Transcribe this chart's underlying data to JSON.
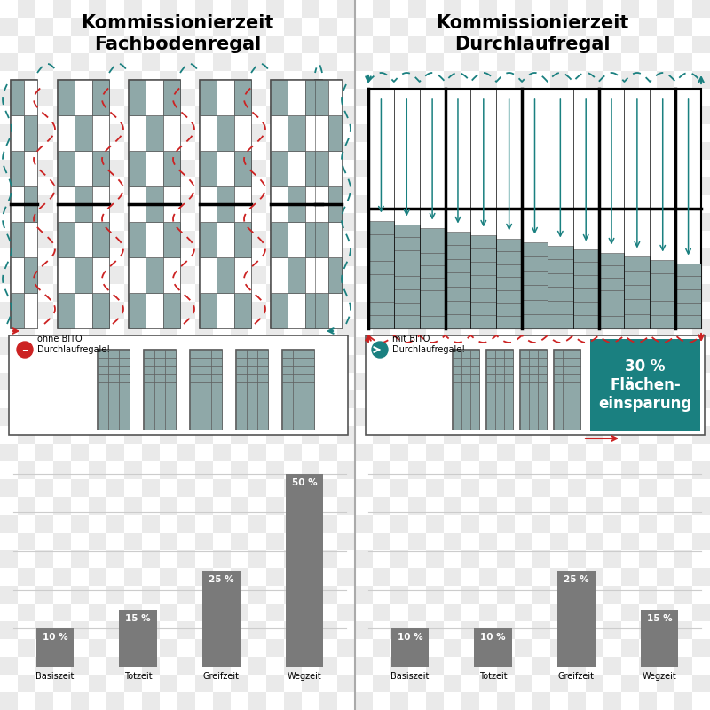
{
  "title_left": "Kommissionierzeit\nFachbodenregal",
  "title_right": "Kommissionierzeit\nDurchlaufregal",
  "shelf_color": "#8fa8a8",
  "shelf_bg_color": "#dde8e8",
  "teal_color": "#1a8080",
  "red_color": "#cc2222",
  "left_bars": {
    "categories": [
      "Basiszeit",
      "Totzeit",
      "Greifzeit",
      "Wegzeit"
    ],
    "values": [
      10,
      15,
      25,
      50
    ],
    "color": "#7a7a7a"
  },
  "right_bars": {
    "categories": [
      "Basiszeit",
      "Totzeit",
      "Greifzeit",
      "Wegzeit"
    ],
    "values": [
      10,
      10,
      25,
      15
    ],
    "color": "#7a7a7a"
  },
  "teal_box_color": "#1a8080",
  "label_ohne": "ohne BITO\nDurchlaufregale!",
  "label_mit": "mit BITO\nDurchlaufregale!",
  "savings_text": "30 %\nFlächen-\neinsparung"
}
